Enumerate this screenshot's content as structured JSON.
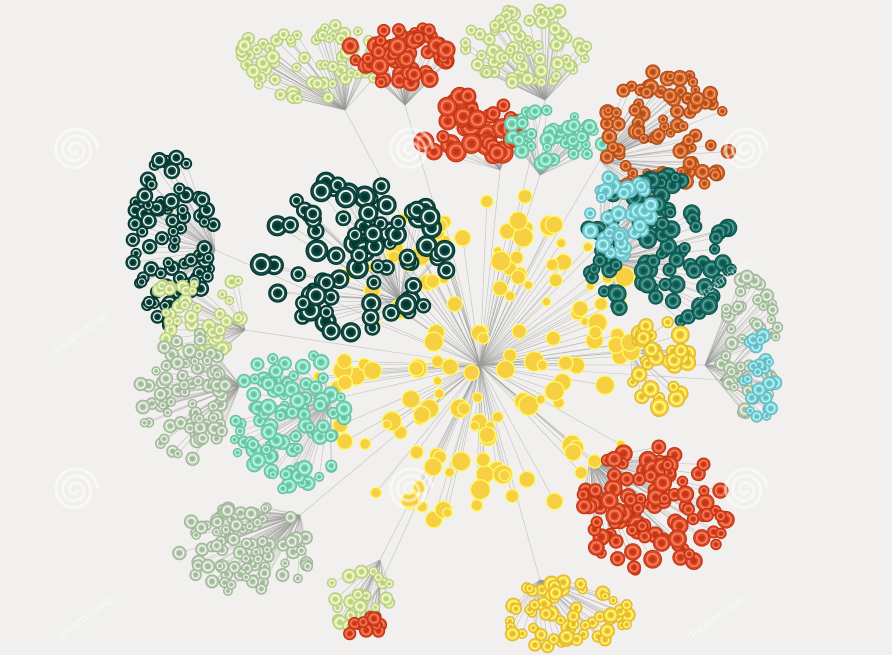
{
  "image": {
    "subject": "network-graph",
    "background_color": "#f1f0ee",
    "edge_color": "#9a9a98"
  },
  "palette": {
    "yellow": "#f6cf42",
    "dark_teal": "#0f4c45",
    "red_orange": "#d94a28",
    "mint": "#7fd6b6",
    "light_green": "#cfe39a",
    "sage": "#b9cbb3",
    "teal": "#1d6b62",
    "brown_orange": "#c9632b",
    "cyan": "#7ccfd6"
  },
  "watermark": {
    "text": "dreamstime",
    "icon": "spiral-icon"
  }
}
